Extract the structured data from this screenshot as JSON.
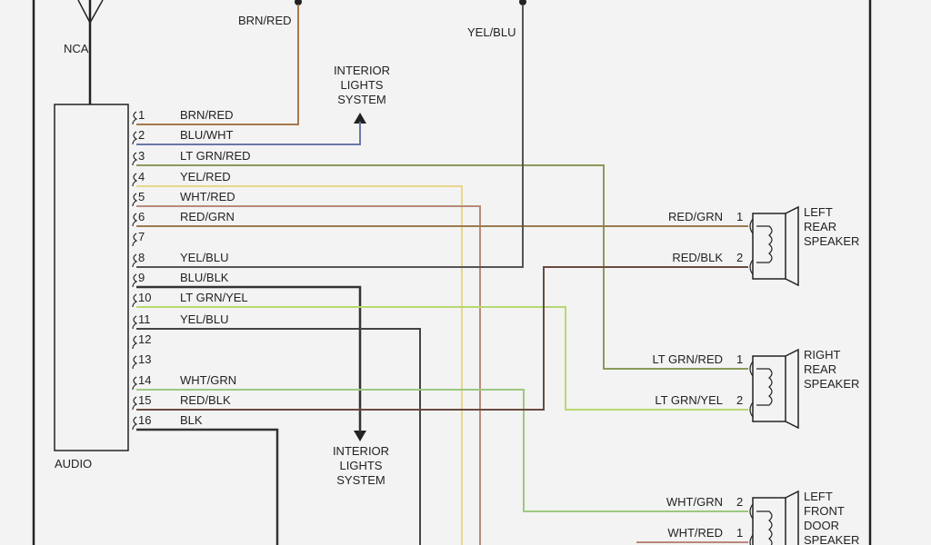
{
  "antenna": {
    "label": "NCA"
  },
  "unit": {
    "label": "AUDIO"
  },
  "top_labels": {
    "brn_red": "BRN/RED",
    "yel_blu": "YEL/BLU"
  },
  "interior_lights": [
    "INTERIOR",
    "LIGHTS",
    "SYSTEM"
  ],
  "pins": [
    {
      "num": "1",
      "wire": "BRN/RED"
    },
    {
      "num": "2",
      "wire": "BLU/WHT"
    },
    {
      "num": "3",
      "wire": "LT GRN/RED"
    },
    {
      "num": "4",
      "wire": "YEL/RED"
    },
    {
      "num": "5",
      "wire": "WHT/RED"
    },
    {
      "num": "6",
      "wire": "RED/GRN"
    },
    {
      "num": "7",
      "wire": ""
    },
    {
      "num": "8",
      "wire": "YEL/BLU"
    },
    {
      "num": "9",
      "wire": "BLU/BLK"
    },
    {
      "num": "10",
      "wire": "LT GRN/YEL"
    },
    {
      "num": "11",
      "wire": "YEL/BLU"
    },
    {
      "num": "12",
      "wire": ""
    },
    {
      "num": "13",
      "wire": ""
    },
    {
      "num": "14",
      "wire": "WHT/GRN"
    },
    {
      "num": "15",
      "wire": "RED/BLK"
    },
    {
      "num": "16",
      "wire": "BLK"
    }
  ],
  "speakers": [
    {
      "name": [
        "LEFT",
        "REAR",
        "SPEAKER"
      ],
      "pins": [
        {
          "num": "1",
          "wire": "RED/GRN"
        },
        {
          "num": "2",
          "wire": "RED/BLK"
        }
      ]
    },
    {
      "name": [
        "RIGHT",
        "REAR",
        "SPEAKER"
      ],
      "pins": [
        {
          "num": "1",
          "wire": "LT GRN/RED"
        },
        {
          "num": "2",
          "wire": "LT GRN/YEL"
        }
      ]
    },
    {
      "name": [
        "LEFT",
        "FRONT",
        "DOOR",
        "SPEAKER"
      ],
      "pins": [
        {
          "num": "2",
          "wire": "WHT/GRN"
        },
        {
          "num": "1",
          "wire": "WHT/RED"
        }
      ]
    }
  ],
  "wire_colors": {
    "brown": "#a8784c",
    "blue": "#6a78a8",
    "ltgrn_red": "#8a9a58",
    "yellow": "#e8d68a",
    "white_red": "#b88a7a",
    "red_grn": "#9a7a50",
    "dark": "#444444",
    "ltgrn_yel": "#b8d870",
    "wht_grn": "#9cc880",
    "red_blk": "#6a4a40"
  }
}
